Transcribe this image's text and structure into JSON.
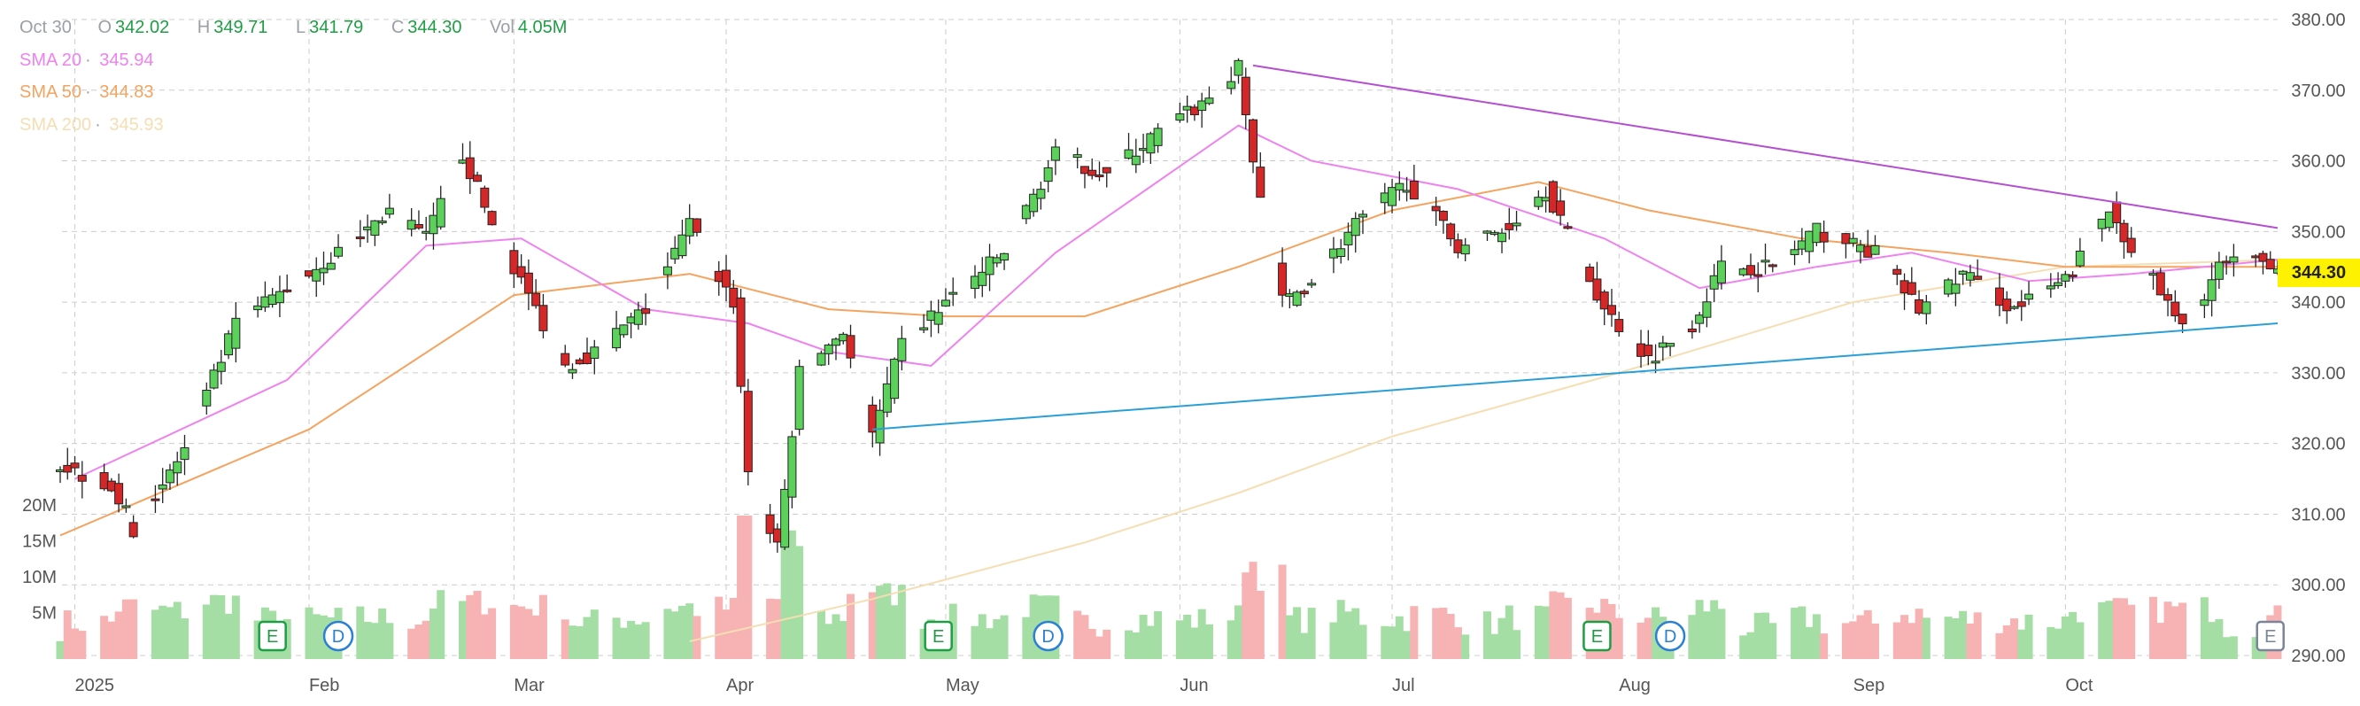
{
  "header": {
    "date": "Oct 30",
    "open_label": "O",
    "open": "342.02",
    "high_label": "H",
    "high": "349.71",
    "low_label": "L",
    "low": "341.79",
    "close_label": "C",
    "close": "344.30",
    "vol_label": "Vol",
    "vol": "4.05M"
  },
  "sma": [
    {
      "label": "SMA 20",
      "value": "345.94",
      "color": "#ee82ee"
    },
    {
      "label": "SMA 50",
      "value": "344.83",
      "color": "#f4a460"
    },
    {
      "label": "SMA 200",
      "value": "345.93",
      "color": "#f5deb3"
    }
  ],
  "last_price": "344.30",
  "colors": {
    "up": "#5bd05b",
    "down": "#d62728",
    "up_volume": "#a5dea5",
    "down_volume": "#f7b3b3",
    "grid": "#cccccc",
    "resistance": "#b44fd1",
    "support": "#2a9fd6"
  },
  "chart_data": {
    "type": "candlestick",
    "y_price_ticks": [
      "380.00",
      "370.00",
      "360.00",
      "350.00",
      "340.00",
      "330.00",
      "320.00",
      "310.00",
      "300.00",
      "290.00"
    ],
    "y_price_range": [
      290,
      380
    ],
    "y_volume_ticks": [
      "20M",
      "15M",
      "10M",
      "5M"
    ],
    "x_month_labels": [
      {
        "label": "2025",
        "date": "2025-01-02"
      },
      {
        "label": "Feb",
        "date": "2025-02-03"
      },
      {
        "label": "Mar",
        "date": "2025-03-03"
      },
      {
        "label": "Apr",
        "date": "2025-04-01"
      },
      {
        "label": "May",
        "date": "2025-05-01"
      },
      {
        "label": "Jun",
        "date": "2025-06-02"
      },
      {
        "label": "Jul",
        "date": "2025-07-01"
      },
      {
        "label": "Aug",
        "date": "2025-08-01"
      },
      {
        "label": "Sep",
        "date": "2025-09-02"
      },
      {
        "label": "Oct",
        "date": "2025-10-01"
      }
    ],
    "date_range": [
      "2024-12-31",
      "2025-10-30"
    ],
    "close_path": [
      [
        "2024-12-31",
        317
      ],
      [
        "2025-01-07",
        314
      ],
      [
        "2025-01-10",
        308
      ],
      [
        "2025-01-17",
        319
      ],
      [
        "2025-01-24",
        337
      ],
      [
        "2025-01-31",
        342
      ],
      [
        "2025-02-07",
        347
      ],
      [
        "2025-02-14",
        353
      ],
      [
        "2025-02-19",
        349
      ],
      [
        "2025-02-24",
        361
      ],
      [
        "2025-02-28",
        351
      ],
      [
        "2025-03-04",
        343
      ],
      [
        "2025-03-10",
        331
      ],
      [
        "2025-03-14",
        333
      ],
      [
        "2025-03-21",
        339
      ],
      [
        "2025-03-27",
        351
      ],
      [
        "2025-04-02",
        340
      ],
      [
        "2025-04-04",
        316
      ],
      [
        "2025-04-08",
        305
      ],
      [
        "2025-04-11",
        330
      ],
      [
        "2025-04-17",
        336
      ],
      [
        "2025-04-21",
        321
      ],
      [
        "2025-04-25",
        334
      ],
      [
        "2025-05-01",
        340
      ],
      [
        "2025-05-09",
        347
      ],
      [
        "2025-05-16",
        361
      ],
      [
        "2025-05-23",
        358
      ],
      [
        "2025-05-30",
        364
      ],
      [
        "2025-06-05",
        368
      ],
      [
        "2025-06-10",
        373
      ],
      [
        "2025-06-12",
        360
      ],
      [
        "2025-06-16",
        340
      ],
      [
        "2025-06-20",
        343
      ],
      [
        "2025-06-26",
        351
      ],
      [
        "2025-07-03",
        357
      ],
      [
        "2025-07-10",
        348
      ],
      [
        "2025-07-16",
        350
      ],
      [
        "2025-07-22",
        356
      ],
      [
        "2025-07-30",
        339
      ],
      [
        "2025-08-05",
        332
      ],
      [
        "2025-08-11",
        337
      ],
      [
        "2025-08-15",
        345
      ],
      [
        "2025-08-22",
        345
      ],
      [
        "2025-08-28",
        350
      ],
      [
        "2025-09-05",
        347
      ],
      [
        "2025-09-11",
        339
      ],
      [
        "2025-09-17",
        344
      ],
      [
        "2025-09-24",
        339
      ],
      [
        "2025-10-01",
        343
      ],
      [
        "2025-10-07",
        353
      ],
      [
        "2025-10-13",
        343
      ],
      [
        "2025-10-17",
        336
      ],
      [
        "2025-10-22",
        345
      ],
      [
        "2025-10-28",
        346
      ],
      [
        "2025-10-30",
        344.3
      ]
    ],
    "sma20_path": [
      [
        "2025-01-02",
        315
      ],
      [
        "2025-01-31",
        329
      ],
      [
        "2025-02-19",
        348
      ],
      [
        "2025-03-04",
        349
      ],
      [
        "2025-03-21",
        339
      ],
      [
        "2025-04-04",
        337
      ],
      [
        "2025-04-15",
        333
      ],
      [
        "2025-04-29",
        331
      ],
      [
        "2025-05-16",
        347
      ],
      [
        "2025-06-10",
        365
      ],
      [
        "2025-06-20",
        360
      ],
      [
        "2025-07-10",
        356
      ],
      [
        "2025-07-30",
        349
      ],
      [
        "2025-08-12",
        342
      ],
      [
        "2025-08-28",
        345
      ],
      [
        "2025-09-10",
        347
      ],
      [
        "2025-09-26",
        343
      ],
      [
        "2025-10-10",
        344
      ],
      [
        "2025-10-30",
        346
      ]
    ],
    "sma50_path": [
      [
        "2024-12-31",
        307
      ],
      [
        "2025-02-03",
        322
      ],
      [
        "2025-03-03",
        341
      ],
      [
        "2025-03-27",
        344
      ],
      [
        "2025-04-15",
        339
      ],
      [
        "2025-05-01",
        338
      ],
      [
        "2025-05-20",
        338
      ],
      [
        "2025-06-10",
        345
      ],
      [
        "2025-07-01",
        353
      ],
      [
        "2025-07-21",
        357
      ],
      [
        "2025-08-05",
        353
      ],
      [
        "2025-08-26",
        349
      ],
      [
        "2025-09-15",
        347
      ],
      [
        "2025-10-01",
        345
      ],
      [
        "2025-10-30",
        345
      ]
    ],
    "sma200_path": [
      [
        "2025-03-27",
        292
      ],
      [
        "2025-04-21",
        298
      ],
      [
        "2025-05-20",
        306
      ],
      [
        "2025-06-10",
        313
      ],
      [
        "2025-07-01",
        321
      ],
      [
        "2025-08-01",
        330
      ],
      [
        "2025-09-02",
        340
      ],
      [
        "2025-10-01",
        345
      ],
      [
        "2025-10-30",
        346
      ]
    ],
    "resistance_line": [
      [
        "2025-06-12",
        373.5
      ],
      [
        "2025-10-30",
        350.5
      ]
    ],
    "support_line": [
      [
        "2025-04-21",
        322
      ],
      [
        "2025-10-30",
        337
      ]
    ],
    "event_markers": [
      {
        "label": "E",
        "date": "2025-01-29",
        "kind": "earnings"
      },
      {
        "label": "D",
        "date": "2025-02-07",
        "kind": "dividend"
      },
      {
        "label": "E",
        "date": "2025-04-30",
        "kind": "earnings"
      },
      {
        "label": "D",
        "date": "2025-05-15",
        "kind": "dividend"
      },
      {
        "label": "E",
        "date": "2025-07-29",
        "kind": "earnings"
      },
      {
        "label": "D",
        "date": "2025-08-08",
        "kind": "dividend"
      },
      {
        "label": "E",
        "date": "2025-10-29",
        "kind": "earnings-upcoming"
      }
    ]
  }
}
